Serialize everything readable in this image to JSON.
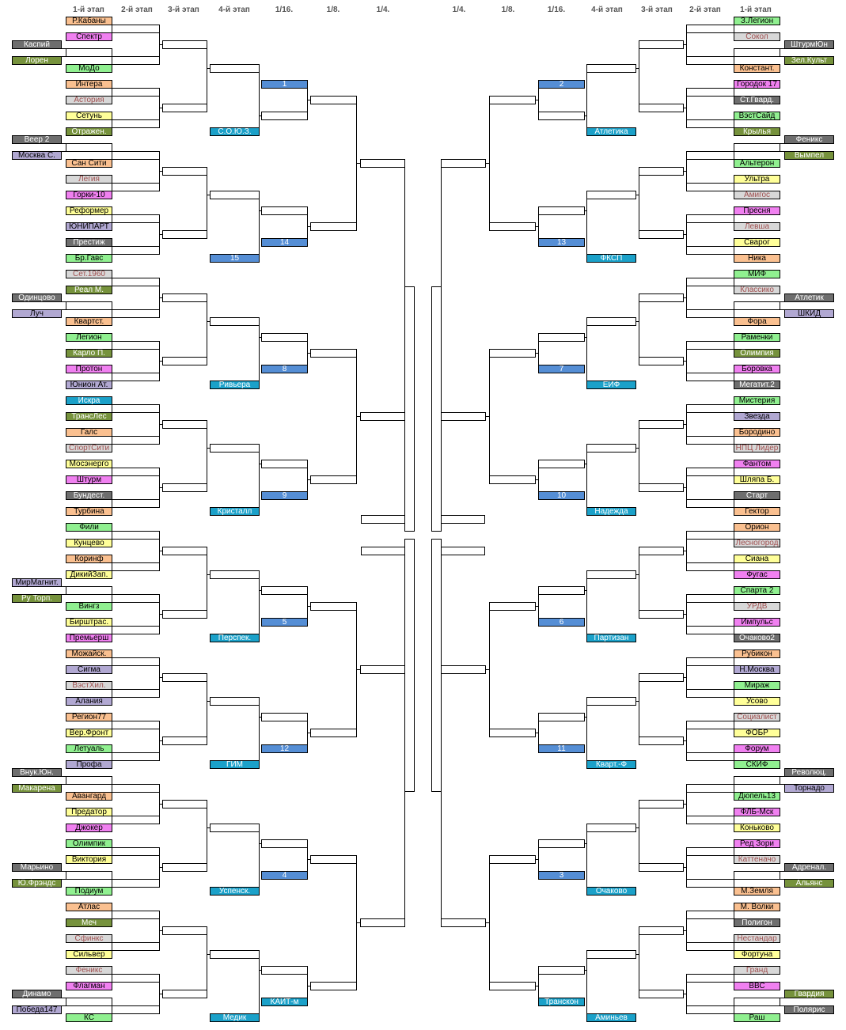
{
  "headers": {
    "left": [
      "1-й этап",
      "2-й этап",
      "3-й этап",
      "4-й этап",
      "1/16.",
      "1/8.",
      "1/4."
    ],
    "right": [
      "1/4.",
      "1/8.",
      "1/16.",
      "4-й этап",
      "3-й этап",
      "2-й этап",
      "1-й этап"
    ]
  },
  "colors": {
    "o": "#fac090",
    "p": "#f080f0",
    "g": "#90f090",
    "l": "#d8d8d8",
    "y": "#ffff99",
    "v": "#76923c",
    "d": "#6e6e6e",
    "u": "#b1a8d2",
    "c": "#1ba1c9",
    "b": "#558ed5"
  },
  "text_colors": {
    "o": "#000000",
    "p": "#000000",
    "g": "#000000",
    "l": "#a05050",
    "y": "#000000",
    "v": "#ffffff",
    "d": "#ffffff",
    "u": "#000000",
    "c": "#ffffff",
    "b": "#ffffff"
  },
  "left": {
    "stage1": [
      {
        "name": "Р.Кабаны",
        "c": "o"
      },
      {
        "name": "Спектр",
        "c": "p"
      },
      {
        "prelim": [
          {
            "name": "Каспий",
            "c": "d"
          },
          {
            "name": "Лорен",
            "c": "v"
          }
        ]
      },
      {
        "name": "МоДо",
        "c": "g"
      },
      {
        "name": "Интера",
        "c": "o"
      },
      {
        "name": "Астория",
        "c": "l"
      },
      {
        "name": "Сетунь",
        "c": "y"
      },
      {
        "name": "Отражен.",
        "c": "v"
      },
      {
        "prelim": [
          {
            "name": "Веер 2",
            "c": "d"
          },
          {
            "name": "Москва С.",
            "c": "u"
          }
        ]
      },
      {
        "name": "Сан Сити",
        "c": "o"
      },
      {
        "name": "Легия",
        "c": "l"
      },
      {
        "name": "Горки-10",
        "c": "p"
      },
      {
        "name": "Реформер",
        "c": "y"
      },
      {
        "name": "ЮНИПАРТ",
        "c": "u"
      },
      {
        "name": "Престиж",
        "c": "d"
      },
      {
        "name": "Бр.Гавс",
        "c": "g"
      },
      {
        "name": "Сет.1960",
        "c": "l"
      },
      {
        "name": "Реал М.",
        "c": "v"
      },
      {
        "prelim": [
          {
            "name": "Одинцово",
            "c": "d"
          },
          {
            "name": "Луч",
            "c": "u"
          }
        ]
      },
      {
        "name": "Квартст.",
        "c": "o"
      },
      {
        "name": "Легион",
        "c": "g"
      },
      {
        "name": "Карло П.",
        "c": "v"
      },
      {
        "name": "Протон",
        "c": "p"
      },
      {
        "name": "Юнион Ат.",
        "c": "u"
      },
      {
        "name": "Искра",
        "c": "c"
      },
      {
        "name": "ТрансЛес",
        "c": "v"
      },
      {
        "name": "Галс",
        "c": "o"
      },
      {
        "name": "СпортСити",
        "c": "l"
      },
      {
        "name": "Мосэнерго",
        "c": "y"
      },
      {
        "name": "Штурм",
        "c": "p"
      },
      {
        "name": "Бундест.",
        "c": "d"
      },
      {
        "name": "Турбина",
        "c": "o"
      },
      {
        "name": "Фили",
        "c": "g"
      },
      {
        "name": "Кунцево",
        "c": "y"
      },
      {
        "name": "Коринф",
        "c": "o"
      },
      {
        "name": "ДикийЗап.",
        "c": "y"
      },
      {
        "prelim": [
          {
            "name": "МирМагнит.",
            "c": "u"
          },
          {
            "name": "Ру  Торп.",
            "c": "v"
          }
        ]
      },
      {
        "name": "Вингз",
        "c": "g"
      },
      {
        "name": "Бирштрас.",
        "c": "y"
      },
      {
        "name": "Премьерш",
        "c": "p"
      },
      {
        "name": "Можайск.",
        "c": "o"
      },
      {
        "name": "Сигма",
        "c": "u"
      },
      {
        "name": "ВэстХил.",
        "c": "l"
      },
      {
        "name": "Алания",
        "c": "u"
      },
      {
        "name": "Регион77",
        "c": "o"
      },
      {
        "name": "Вер.Фронт",
        "c": "y"
      },
      {
        "name": "Летуаль",
        "c": "g"
      },
      {
        "name": "Профа",
        "c": "u"
      },
      {
        "prelim": [
          {
            "name": "Внук.Юн.",
            "c": "d"
          },
          {
            "name": "Макарена",
            "c": "v"
          }
        ]
      },
      {
        "name": "Авангард",
        "c": "o"
      },
      {
        "name": "Предатор",
        "c": "y"
      },
      {
        "name": "Джокер",
        "c": "p"
      },
      {
        "name": "Олимпик",
        "c": "g"
      },
      {
        "name": "Виктория",
        "c": "y"
      },
      {
        "prelim": [
          {
            "name": "Марьино",
            "c": "d"
          },
          {
            "name": "Ю.Фрэндс",
            "c": "v"
          }
        ]
      },
      {
        "name": "Подиум",
        "c": "g"
      },
      {
        "name": "Атлас",
        "c": "o"
      },
      {
        "name": "Меч",
        "c": "v"
      },
      {
        "name": "Сфинкс",
        "c": "l"
      },
      {
        "name": "Сильвер",
        "c": "y"
      },
      {
        "name": "Феникс",
        "c": "l"
      },
      {
        "name": "Флагман",
        "c": "p"
      },
      {
        "prelim": [
          {
            "name": "Динамо",
            "c": "d"
          },
          {
            "name": "Победа147",
            "c": "u"
          }
        ]
      },
      {
        "name": "КС",
        "c": "g"
      }
    ],
    "stage4_seeds": [
      {
        "name": "С.О.Ю.З.",
        "c": "c"
      },
      {
        "name": "15",
        "c": "b"
      },
      {
        "name": "Ривьера",
        "c": "c"
      },
      {
        "name": "Кристалл",
        "c": "c"
      },
      {
        "name": "Перспек.",
        "c": "c"
      },
      {
        "name": "ГИМ",
        "c": "c"
      },
      {
        "name": "Успенск.",
        "c": "c"
      },
      {
        "name": "Медик",
        "c": "c"
      }
    ],
    "round16_seeds": [
      {
        "name": "1",
        "c": "b"
      },
      {
        "name": "14",
        "c": "b"
      },
      {
        "name": "8",
        "c": "b"
      },
      {
        "name": "9",
        "c": "b"
      },
      {
        "name": "5",
        "c": "b"
      },
      {
        "name": "12",
        "c": "b"
      },
      {
        "name": "4",
        "c": "b"
      },
      {
        "name": "КАИТ-м",
        "c": "c"
      }
    ]
  },
  "right": {
    "stage1": [
      {
        "name": "З.Легион",
        "c": "g"
      },
      {
        "name": "Сокол",
        "c": "l"
      },
      {
        "prelim": [
          {
            "name": "ШтурмЮн",
            "c": "d"
          },
          {
            "name": "Зел.Культ",
            "c": "v"
          }
        ]
      },
      {
        "name": "Констант.",
        "c": "o"
      },
      {
        "name": "Городок 17",
        "c": "p"
      },
      {
        "name": "Ст.Гвард.",
        "c": "d"
      },
      {
        "name": "ВэстСайд",
        "c": "g"
      },
      {
        "name": "Крылья",
        "c": "v"
      },
      {
        "prelim": [
          {
            "name": "Феникс",
            "c": "d"
          },
          {
            "name": "Вымпел",
            "c": "v"
          }
        ]
      },
      {
        "name": "Альтерон",
        "c": "g"
      },
      {
        "name": "Ультра",
        "c": "y"
      },
      {
        "name": "Амигос",
        "c": "l"
      },
      {
        "name": "Пресня",
        "c": "p"
      },
      {
        "name": "Левша",
        "c": "l"
      },
      {
        "name": "Сварог",
        "c": "y"
      },
      {
        "name": "Ника",
        "c": "o"
      },
      {
        "name": "МИФ",
        "c": "g"
      },
      {
        "name": "Классико",
        "c": "l"
      },
      {
        "prelim": [
          {
            "name": "Атлетик",
            "c": "d"
          },
          {
            "name": "ШКИД",
            "c": "u"
          }
        ]
      },
      {
        "name": "Фора",
        "c": "o"
      },
      {
        "name": "Раменки",
        "c": "g"
      },
      {
        "name": "Олимпия",
        "c": "v"
      },
      {
        "name": "Боровка",
        "c": "p"
      },
      {
        "name": "Мегатит.2",
        "c": "d"
      },
      {
        "name": "Мистерия",
        "c": "g"
      },
      {
        "name": "Звезда",
        "c": "u"
      },
      {
        "name": "Бородино",
        "c": "o"
      },
      {
        "name": "НПЦ Лидер",
        "c": "l"
      },
      {
        "name": "Фантом",
        "c": "p"
      },
      {
        "name": "Шляпа Б.",
        "c": "y"
      },
      {
        "name": "Старт",
        "c": "d"
      },
      {
        "name": "Гектор",
        "c": "o"
      },
      {
        "name": "Орион",
        "c": "o"
      },
      {
        "name": "Лесногород",
        "c": "l"
      },
      {
        "name": "Сиана",
        "c": "y"
      },
      {
        "name": "Фугас",
        "c": "p"
      },
      {
        "name": "Спарта 2",
        "c": "g"
      },
      {
        "name": "УРДВ",
        "c": "l"
      },
      {
        "name": "Импульс",
        "c": "p"
      },
      {
        "name": "Очаково2",
        "c": "d"
      },
      {
        "name": "Рубикон",
        "c": "o"
      },
      {
        "name": "Н.Москва",
        "c": "u"
      },
      {
        "name": "Мираж",
        "c": "g"
      },
      {
        "name": "Усово",
        "c": "y"
      },
      {
        "name": "Социалист",
        "c": "l"
      },
      {
        "name": "ФОБР",
        "c": "y"
      },
      {
        "name": "Форум",
        "c": "p"
      },
      {
        "name": "СКИФ",
        "c": "g"
      },
      {
        "prelim": [
          {
            "name": "Революц.",
            "c": "d"
          },
          {
            "name": "Торнадо",
            "c": "u"
          }
        ]
      },
      {
        "name": "Дюпель13",
        "c": "g"
      },
      {
        "name": "ФЛБ-Мск",
        "c": "p"
      },
      {
        "name": "Коньково",
        "c": "y"
      },
      {
        "name": "Ред Зори",
        "c": "p"
      },
      {
        "name": "Каттеначо",
        "c": "l"
      },
      {
        "prelim": [
          {
            "name": "Адренал.",
            "c": "d"
          },
          {
            "name": "Альянс",
            "c": "v"
          }
        ]
      },
      {
        "name": "М.Земля",
        "c": "o"
      },
      {
        "name": "М. Волки",
        "c": "o"
      },
      {
        "name": "Полигон",
        "c": "d"
      },
      {
        "name": "Нестандар",
        "c": "l"
      },
      {
        "name": "Фортуна",
        "c": "y"
      },
      {
        "name": "Гранд",
        "c": "l"
      },
      {
        "name": "ВВС",
        "c": "p"
      },
      {
        "prelim": [
          {
            "name": "Гвардия",
            "c": "v"
          },
          {
            "name": "Полярис",
            "c": "d"
          }
        ]
      },
      {
        "name": "Раш",
        "c": "g"
      }
    ],
    "stage4_seeds": [
      {
        "name": "Атлетика",
        "c": "c"
      },
      {
        "name": "ФКСП",
        "c": "c"
      },
      {
        "name": "ЕИФ",
        "c": "c"
      },
      {
        "name": "Надежда",
        "c": "c"
      },
      {
        "name": "Партизан",
        "c": "c"
      },
      {
        "name": "Кварт.-Ф",
        "c": "c"
      },
      {
        "name": "Очаково",
        "c": "c"
      },
      {
        "name": "Аминьев",
        "c": "c"
      }
    ],
    "round16_seeds": [
      {
        "name": "2",
        "c": "b"
      },
      {
        "name": "13",
        "c": "b"
      },
      {
        "name": "7",
        "c": "b"
      },
      {
        "name": "10",
        "c": "b"
      },
      {
        "name": "6",
        "c": "b"
      },
      {
        "name": "11",
        "c": "b"
      },
      {
        "name": "3",
        "c": "b"
      },
      {
        "name": "Транскон",
        "c": "c"
      }
    ]
  }
}
